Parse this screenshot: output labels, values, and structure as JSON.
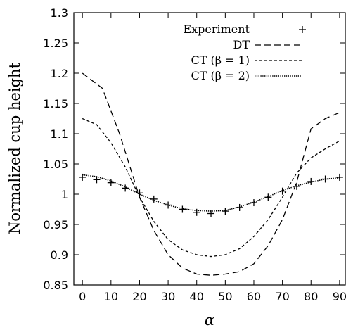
{
  "chart_data": {
    "type": "line",
    "xlabel": "α",
    "ylabel": "Normalized cup height",
    "xlim": [
      -3,
      92
    ],
    "ylim": [
      0.85,
      1.3
    ],
    "xticks": [
      0,
      10,
      20,
      30,
      40,
      50,
      60,
      70,
      80,
      90
    ],
    "yticks": [
      0.85,
      0.9,
      0.95,
      1,
      1.05,
      1.1,
      1.15,
      1.2,
      1.25,
      1.3
    ],
    "ytick_labels": [
      "0.85",
      "0.9",
      "0.95",
      "1",
      "1.05",
      "1.1",
      "1.15",
      "1.2",
      "1.25",
      "1.3"
    ],
    "grid": false,
    "legend_position": "top-right",
    "series": [
      {
        "name": "Experiment",
        "style": "points-plus",
        "x": [
          0,
          5,
          10,
          15,
          20,
          25,
          30,
          35,
          40,
          45,
          50,
          55,
          60,
          65,
          70,
          75,
          80,
          85,
          90
        ],
        "y": [
          1.028,
          1.024,
          1.019,
          1.01,
          1.002,
          0.992,
          0.982,
          0.975,
          0.97,
          0.968,
          0.972,
          0.978,
          0.986,
          0.995,
          1.005,
          1.013,
          1.021,
          1.025,
          1.028
        ]
      },
      {
        "name": "DT",
        "style": "long-dash",
        "x": [
          0,
          7,
          13,
          20,
          25,
          30,
          35,
          40,
          45,
          50,
          55,
          60,
          65,
          70,
          75,
          80,
          85,
          90
        ],
        "y": [
          1.2,
          1.175,
          1.1,
          0.995,
          0.94,
          0.9,
          0.878,
          0.868,
          0.866,
          0.868,
          0.872,
          0.885,
          0.915,
          0.958,
          1.02,
          1.108,
          1.125,
          1.135
        ]
      },
      {
        "name": "CT (β = 1)",
        "style": "short-dash",
        "x": [
          0,
          5,
          10,
          15,
          20,
          25,
          30,
          35,
          40,
          45,
          50,
          55,
          60,
          65,
          70,
          75,
          80,
          85,
          90
        ],
        "y": [
          1.125,
          1.115,
          1.085,
          1.045,
          0.995,
          0.955,
          0.925,
          0.908,
          0.9,
          0.897,
          0.9,
          0.91,
          0.93,
          0.958,
          0.995,
          1.035,
          1.06,
          1.075,
          1.088
        ]
      },
      {
        "name": "CT (β = 2)",
        "style": "dotted",
        "x": [
          0,
          5,
          10,
          15,
          20,
          25,
          30,
          35,
          40,
          45,
          50,
          55,
          60,
          65,
          70,
          75,
          80,
          85,
          90
        ],
        "y": [
          1.032,
          1.029,
          1.022,
          1.012,
          1.0,
          0.99,
          0.982,
          0.976,
          0.973,
          0.972,
          0.973,
          0.979,
          0.987,
          0.996,
          1.006,
          1.014,
          1.02,
          1.025,
          1.027
        ]
      }
    ],
    "colors": {
      "ink": "#000000",
      "background": "#ffffff"
    }
  }
}
